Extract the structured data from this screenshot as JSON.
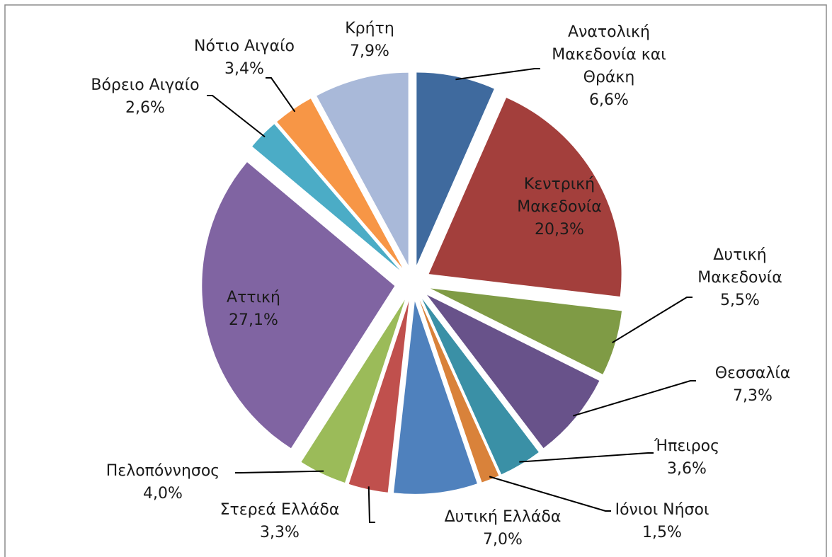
{
  "chart_data": {
    "type": "pie",
    "categories": [
      "Ανατολική Μακεδονία και Θράκη",
      "Κεντρική Μακεδονία",
      "Δυτική Μακεδονία",
      "Θεσσαλία",
      "Ήπειρος",
      "Ιόνιοι Νήσοι",
      "Δυτική Ελλάδα",
      "Στερεά Ελλάδα",
      "Πελοπόννησος",
      "Αττική",
      "Βόρειο Αιγαίο",
      "Νότιο Αιγαίο",
      "Κρήτη"
    ],
    "values": [
      6.6,
      20.3,
      5.5,
      7.3,
      3.6,
      1.5,
      7.0,
      3.3,
      4.0,
      27.1,
      2.6,
      3.4,
      7.9
    ],
    "value_labels": [
      "6,6%",
      "20,3%",
      "5,5%",
      "7,3%",
      "3,6%",
      "1,5%",
      "7,0%",
      "3,3%",
      "4,0%",
      "27,1%",
      "2,6%",
      "3,4%",
      "7,9%"
    ],
    "colors": [
      "#3f6a9e",
      "#a33f3c",
      "#7f9b45",
      "#68528a",
      "#3a90a6",
      "#d9823a",
      "#4f81bd",
      "#c0504d",
      "#9bbb59",
      "#8064a2",
      "#4bacc6",
      "#f79646",
      "#a9b9d9"
    ]
  }
}
